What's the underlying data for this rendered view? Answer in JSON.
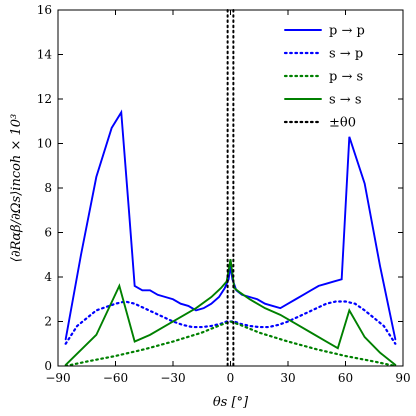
{
  "chart_data": {
    "type": "line",
    "xlabel": "θs [°]",
    "ylabel": "⟨∂Rαβ/∂Ωs⟩incoh × 10³",
    "xlim": [
      -90,
      90
    ],
    "ylim": [
      0,
      16
    ],
    "xticks": [
      -90,
      -60,
      -30,
      0,
      30,
      60,
      90
    ],
    "xtick_labels": [
      "−90",
      "−60",
      "−30",
      "0",
      "30",
      "60",
      "90"
    ],
    "yticks": [
      0,
      2,
      4,
      6,
      8,
      10,
      12,
      14,
      16
    ],
    "ytick_labels": [
      "0",
      "2",
      "4",
      "6",
      "8",
      "10",
      "12",
      "14",
      "16"
    ],
    "grid": false,
    "legend_position": "top-right",
    "series": [
      {
        "name": "p → p",
        "color": "#0000ff",
        "dash": "solid",
        "x": [
          -86,
          -78,
          -70,
          -62,
          -57,
          -53,
          -50,
          -46,
          -42,
          -38,
          -34,
          -30,
          -26,
          -22,
          -18,
          -14,
          -10,
          -6,
          -3,
          -1,
          0,
          1,
          3,
          6,
          10,
          14,
          18,
          22,
          26,
          30,
          34,
          38,
          42,
          46,
          50,
          54,
          58,
          62,
          70,
          78,
          86
        ],
        "y": [
          1.2,
          5.0,
          8.5,
          10.7,
          11.4,
          7.0,
          3.6,
          3.4,
          3.4,
          3.2,
          3.1,
          3.0,
          2.8,
          2.7,
          2.5,
          2.6,
          2.8,
          3.1,
          3.5,
          3.9,
          4.5,
          3.9,
          3.4,
          3.2,
          3.1,
          3.0,
          2.8,
          2.7,
          2.6,
          2.8,
          3.0,
          3.2,
          3.4,
          3.6,
          3.7,
          3.8,
          3.9,
          10.3,
          8.2,
          4.5,
          1.2
        ]
      },
      {
        "name": "s → p",
        "color": "#0000ff",
        "dash": "dotted",
        "x": [
          -86,
          -80,
          -70,
          -60,
          -55,
          -50,
          -45,
          -40,
          -35,
          -30,
          -25,
          -20,
          -15,
          -10,
          -5,
          -2,
          0,
          2,
          5,
          10,
          15,
          20,
          25,
          30,
          35,
          40,
          45,
          50,
          55,
          60,
          65,
          70,
          80,
          86
        ],
        "y": [
          1.0,
          1.8,
          2.5,
          2.8,
          2.9,
          2.8,
          2.6,
          2.4,
          2.2,
          2.0,
          1.85,
          1.75,
          1.75,
          1.8,
          1.9,
          2.0,
          2.0,
          2.0,
          1.9,
          1.8,
          1.75,
          1.75,
          1.85,
          2.0,
          2.2,
          2.4,
          2.6,
          2.8,
          2.9,
          2.9,
          2.8,
          2.5,
          1.8,
          1.0
        ]
      },
      {
        "name": "p → s",
        "color": "#008000",
        "dash": "dotted",
        "x": [
          -86,
          -75,
          -60,
          -45,
          -30,
          -15,
          -5,
          0,
          5,
          15,
          30,
          45,
          60,
          75,
          86
        ],
        "y": [
          0.0,
          0.2,
          0.45,
          0.75,
          1.1,
          1.5,
          1.85,
          2.0,
          1.85,
          1.5,
          1.1,
          0.75,
          0.45,
          0.2,
          0.0
        ]
      },
      {
        "name": "s → s",
        "color": "#008000",
        "dash": "solid",
        "x": [
          -86,
          -70,
          -58,
          -50,
          -42,
          -34,
          -26,
          -18,
          -10,
          -5,
          -2,
          0,
          2,
          5,
          10,
          18,
          26,
          34,
          42,
          50,
          56,
          62,
          70,
          78,
          86
        ],
        "y": [
          0.05,
          1.4,
          3.6,
          1.1,
          1.4,
          1.8,
          2.2,
          2.6,
          3.1,
          3.5,
          3.8,
          4.8,
          3.5,
          3.3,
          3.0,
          2.6,
          2.3,
          1.9,
          1.5,
          1.1,
          0.8,
          2.5,
          1.3,
          0.6,
          0.05
        ]
      },
      {
        "name": "±θ0",
        "color": "#000000",
        "dash": "dotted",
        "vlines": [
          -1.5,
          1.5
        ]
      }
    ]
  }
}
